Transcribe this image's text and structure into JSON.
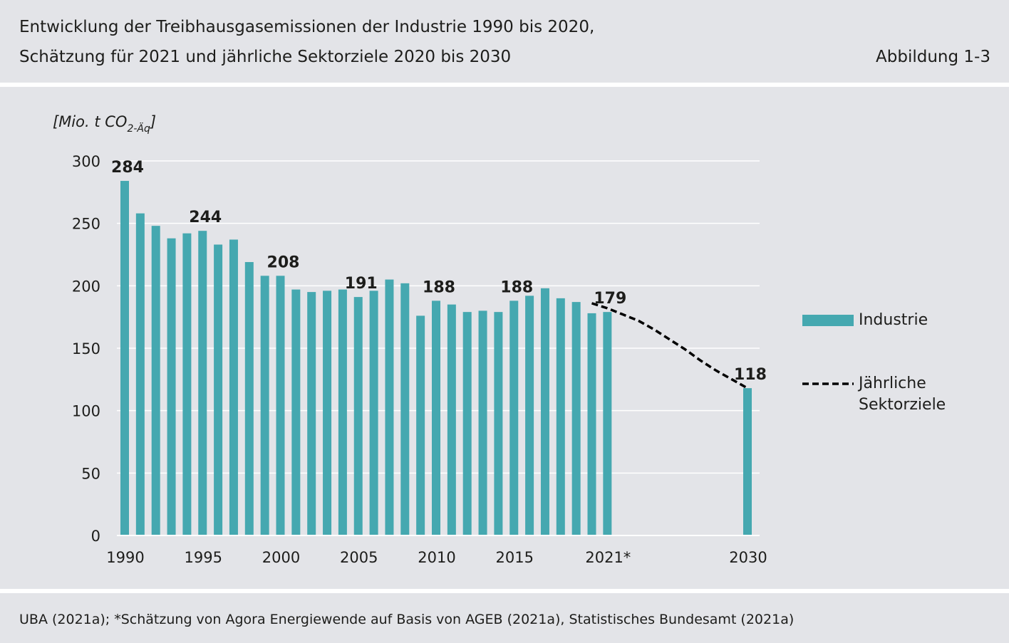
{
  "header": {
    "title_line1": "Entwicklung der Treibhausgasemissionen der Industrie 1990 bis 2020,",
    "title_line2": "Schätzung für 2021 und jährliche Sektorziele 2020 bis 2030",
    "figure_label": "Abbildung 1-3"
  },
  "footer": {
    "source": "UBA (2021a); *Schätzung von Agora Energiewende auf Basis von AGEB (2021a), Statistisches Bundesamt (2021a)"
  },
  "colors": {
    "bar": "#45a8b0",
    "target_line": "#000000",
    "grid": "#ffffff",
    "background": "#e3e4e8"
  },
  "chart_data": {
    "type": "bar",
    "ylabel_main": "[Mio. t CO",
    "ylabel_sub": "2-Äq",
    "ylabel_close": "]",
    "ylim": [
      0,
      300
    ],
    "yticks": [
      0,
      50,
      100,
      150,
      200,
      250,
      300
    ],
    "xtick_labels": [
      {
        "year": 1990,
        "label": "1990"
      },
      {
        "year": 1995,
        "label": "1995"
      },
      {
        "year": 2000,
        "label": "2000"
      },
      {
        "year": 2005,
        "label": "2005"
      },
      {
        "year": 2010,
        "label": "2010"
      },
      {
        "year": 2015,
        "label": "2015"
      },
      {
        "year": 2021,
        "label": "2021*"
      },
      {
        "year": 2030,
        "label": "2030"
      }
    ],
    "grid": true,
    "legend_position": "right",
    "series": [
      {
        "name": "Industrie",
        "kind": "bar",
        "x": [
          1990,
          1991,
          1992,
          1993,
          1994,
          1995,
          1996,
          1997,
          1998,
          1999,
          2000,
          2001,
          2002,
          2003,
          2004,
          2005,
          2006,
          2007,
          2008,
          2009,
          2010,
          2011,
          2012,
          2013,
          2014,
          2015,
          2016,
          2017,
          2018,
          2019,
          2020,
          2021,
          2030
        ],
        "values": [
          284,
          258,
          248,
          238,
          242,
          244,
          233,
          237,
          219,
          208,
          208,
          197,
          195,
          196,
          197,
          191,
          196,
          205,
          202,
          176,
          188,
          185,
          179,
          180,
          179,
          188,
          192,
          198,
          190,
          187,
          178,
          179,
          118
        ]
      },
      {
        "name": "Jährliche Sektorziele",
        "legend_lines": [
          "Jährliche",
          "Sektorziele"
        ],
        "kind": "line",
        "style": "dashed",
        "x": [
          2020,
          2021,
          2022,
          2023,
          2024,
          2025,
          2026,
          2027,
          2028,
          2029,
          2030
        ],
        "values": [
          186,
          182,
          177,
          172,
          165,
          157,
          149,
          140,
          132,
          125,
          118
        ]
      }
    ],
    "data_labels": [
      {
        "year": 1990,
        "label": "284",
        "value": 284
      },
      {
        "year": 1995,
        "label": "244",
        "value": 244
      },
      {
        "year": 2000,
        "label": "208",
        "value": 208
      },
      {
        "year": 2005,
        "label": "191",
        "value": 191
      },
      {
        "year": 2010,
        "label": "188",
        "value": 188
      },
      {
        "year": 2015,
        "label": "188",
        "value": 188
      },
      {
        "year": 2021,
        "label": "179",
        "value": 179
      },
      {
        "year": 2030,
        "label": "118",
        "value": 118
      }
    ]
  }
}
